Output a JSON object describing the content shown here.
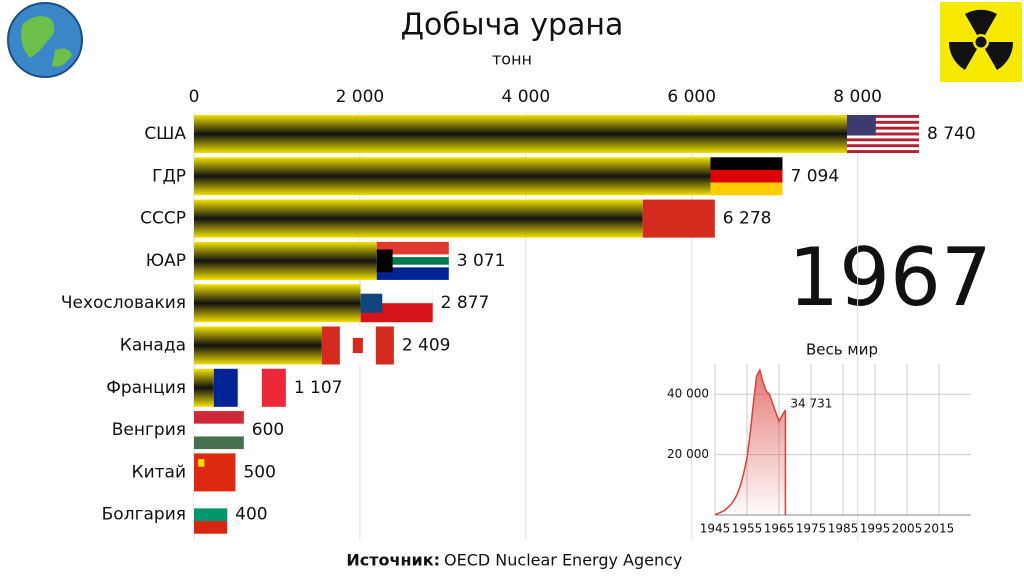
{
  "chart_data": [
    {
      "type": "bar",
      "title": "Добыча урана",
      "subtitle": "тонн",
      "categories": [
        "США",
        "ГДР",
        "СССР",
        "ЮАР",
        "Чехословакия",
        "Канада",
        "Франция",
        "Венгрия",
        "Китай",
        "Болгария"
      ],
      "values": [
        8740,
        7094,
        6278,
        3071,
        2877,
        2409,
        1107,
        600,
        500,
        400
      ],
      "value_labels": [
        "8 740",
        "7 094",
        "6 278",
        "3 071",
        "2 877",
        "2 409",
        "1 107",
        "600",
        "500",
        "400"
      ],
      "xlim": [
        0,
        8800
      ],
      "xticks": [
        0,
        {
          "value": 2000,
          "label": "2 000"
        },
        {
          "value": 4000,
          "label": "4 000"
        },
        {
          "value": 6000,
          "label": "6 000"
        },
        {
          "value": 8000,
          "label": "8 000"
        }
      ],
      "grid": true,
      "year": "1967"
    },
    {
      "type": "line",
      "title": "Весь мир",
      "x": [
        1945,
        1946,
        1947,
        1948,
        1949,
        1950,
        1951,
        1952,
        1953,
        1954,
        1955,
        1956,
        1957,
        1958,
        1959,
        1960,
        1961,
        1962,
        1963,
        1964,
        1965,
        1966,
        1967
      ],
      "values": [
        100,
        500,
        1000,
        1500,
        2500,
        3500,
        5000,
        7000,
        10000,
        14000,
        19000,
        27000,
        37000,
        46000,
        48000,
        44000,
        41000,
        40000,
        37000,
        34000,
        31000,
        33000,
        34731
      ],
      "value_labels": [
        null,
        null,
        null,
        null,
        null,
        null,
        null,
        null,
        null,
        null,
        null,
        null,
        null,
        null,
        null,
        null,
        null,
        null,
        null,
        null,
        null,
        null,
        "34 731"
      ],
      "color": "#d9413a",
      "xlim": [
        1945,
        2025
      ],
      "ylim": [
        0,
        50000
      ],
      "xticks": [
        1945,
        1955,
        1965,
        1975,
        1985,
        1995,
        2005,
        2015
      ],
      "yticks": [
        {
          "value": 20000,
          "label": "20 000"
        },
        {
          "value": 40000,
          "label": "40 000"
        }
      ],
      "grid": true
    }
  ],
  "source": {
    "label": "Источник:",
    "text": "OECD Nuclear Energy Agency"
  }
}
